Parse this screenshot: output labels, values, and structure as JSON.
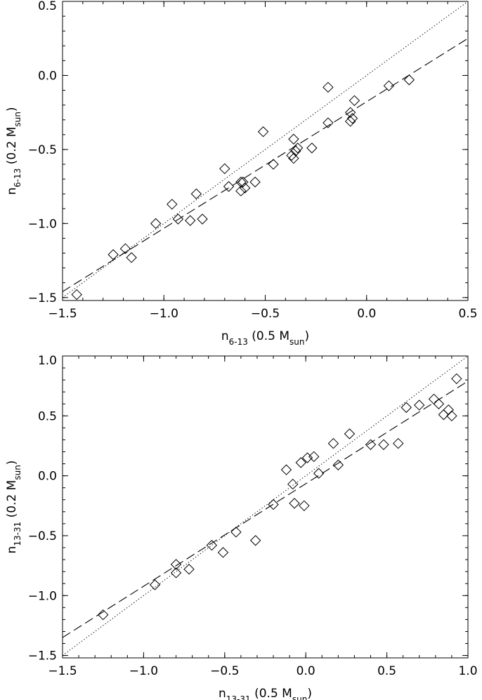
{
  "chart_data": [
    {
      "type": "scatter",
      "xlabel": {
        "base": "n",
        "sub": "6-13",
        "mid": " (0.5 M",
        "msub": "sun",
        "end": ")"
      },
      "ylabel": {
        "base": "n",
        "sub": "6-13",
        "mid": " (0.2 M",
        "msub": "sun",
        "end": ")"
      },
      "xlim": [
        -1.5,
        0.5
      ],
      "ylim": [
        -1.52,
        0.5
      ],
      "xticks": [
        -1.5,
        -1.0,
        -0.5,
        0.0,
        0.5
      ],
      "xtick_labels": [
        "−1.5",
        "−1.0",
        "−0.5",
        "0.0",
        "0.5"
      ],
      "yticks": [
        -1.5,
        -1.0,
        -0.5,
        0.0,
        0.5
      ],
      "ytick_labels": [
        "−1.5",
        "−1.0",
        "−0.5",
        "0.0",
        "0.5"
      ],
      "marker": "diamond",
      "points": [
        [
          -1.43,
          -1.48
        ],
        [
          -1.25,
          -1.21
        ],
        [
          -1.19,
          -1.17
        ],
        [
          -1.16,
          -1.23
        ],
        [
          -1.04,
          -1.0
        ],
        [
          -0.96,
          -0.87
        ],
        [
          -0.93,
          -0.97
        ],
        [
          -0.87,
          -0.98
        ],
        [
          -0.84,
          -0.8
        ],
        [
          -0.81,
          -0.97
        ],
        [
          -0.7,
          -0.63
        ],
        [
          -0.68,
          -0.75
        ],
        [
          -0.62,
          -0.72
        ],
        [
          -0.62,
          -0.78
        ],
        [
          -0.61,
          -0.72
        ],
        [
          -0.6,
          -0.76
        ],
        [
          -0.55,
          -0.72
        ],
        [
          -0.51,
          -0.38
        ],
        [
          -0.46,
          -0.6
        ],
        [
          -0.37,
          -0.54
        ],
        [
          -0.36,
          -0.43
        ],
        [
          -0.36,
          -0.56
        ],
        [
          -0.35,
          -0.51
        ],
        [
          -0.34,
          -0.49
        ],
        [
          -0.27,
          -0.49
        ],
        [
          -0.19,
          -0.08
        ],
        [
          -0.19,
          -0.32
        ],
        [
          -0.08,
          -0.31
        ],
        [
          -0.08,
          -0.25
        ],
        [
          -0.07,
          -0.29
        ],
        [
          -0.06,
          -0.17
        ],
        [
          0.11,
          -0.07
        ],
        [
          0.21,
          -0.03
        ]
      ],
      "lines": [
        {
          "style": "dotted",
          "x": [
            -1.5,
            0.5
          ],
          "y": [
            -1.5,
            0.5
          ]
        },
        {
          "style": "dashed",
          "x": [
            -1.5,
            0.5
          ],
          "y": [
            -1.46,
            0.25
          ]
        }
      ]
    },
    {
      "type": "scatter",
      "xlabel": {
        "base": "n",
        "sub": "13-31",
        "mid": " (0.5 M",
        "msub": "sun",
        "end": ")"
      },
      "ylabel": {
        "base": "n",
        "sub": "13-31",
        "mid": " (0.2 M",
        "msub": "sun",
        "end": ")"
      },
      "xlim": [
        -1.5,
        1.0
      ],
      "ylim": [
        -1.52,
        1.0
      ],
      "xticks": [
        -1.5,
        -1.0,
        -0.5,
        0.0,
        0.5,
        1.0
      ],
      "xtick_labels": [
        "−1.5",
        "−1.0",
        "−0.5",
        "0.0",
        "0.5",
        "1.0"
      ],
      "yticks": [
        -1.5,
        -1.0,
        -0.5,
        0.0,
        0.5,
        1.0
      ],
      "ytick_labels": [
        "−1.5",
        "−1.0",
        "−0.5",
        "0.0",
        "0.5",
        "1.0"
      ],
      "marker": "diamond",
      "points": [
        [
          -1.25,
          -1.16
        ],
        [
          -0.93,
          -0.91
        ],
        [
          -0.8,
          -0.81
        ],
        [
          -0.8,
          -0.74
        ],
        [
          -0.72,
          -0.78
        ],
        [
          -0.58,
          -0.58
        ],
        [
          -0.51,
          -0.64
        ],
        [
          -0.43,
          -0.47
        ],
        [
          -0.31,
          -0.54
        ],
        [
          -0.2,
          -0.24
        ],
        [
          -0.12,
          0.05
        ],
        [
          -0.08,
          -0.07
        ],
        [
          -0.07,
          -0.23
        ],
        [
          -0.03,
          0.11
        ],
        [
          -0.01,
          -0.25
        ],
        [
          0.01,
          0.15
        ],
        [
          0.05,
          0.16
        ],
        [
          0.08,
          0.02
        ],
        [
          0.17,
          0.27
        ],
        [
          0.2,
          0.09
        ],
        [
          0.27,
          0.35
        ],
        [
          0.4,
          0.26
        ],
        [
          0.48,
          0.26
        ],
        [
          0.57,
          0.27
        ],
        [
          0.62,
          0.57
        ],
        [
          0.7,
          0.59
        ],
        [
          0.79,
          0.64
        ],
        [
          0.82,
          0.6
        ],
        [
          0.85,
          0.51
        ],
        [
          0.88,
          0.55
        ],
        [
          0.9,
          0.5
        ],
        [
          0.93,
          0.81
        ]
      ],
      "lines": [
        {
          "style": "dotted",
          "x": [
            -1.5,
            1.0
          ],
          "y": [
            -1.5,
            1.0
          ]
        },
        {
          "style": "dashed",
          "x": [
            -1.5,
            1.0
          ],
          "y": [
            -1.35,
            0.79
          ]
        }
      ]
    }
  ]
}
